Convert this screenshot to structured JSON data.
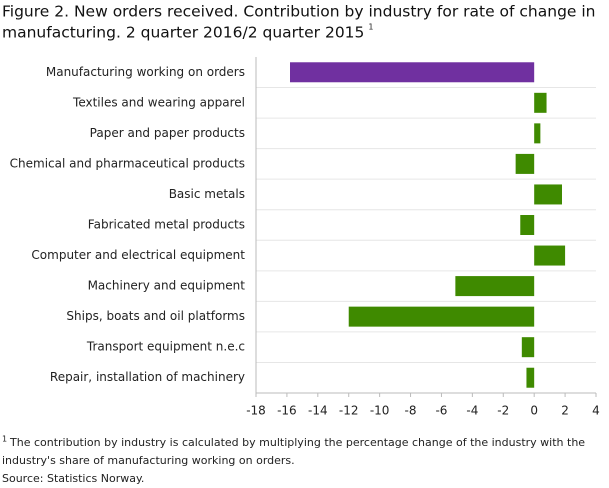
{
  "chart_data": {
    "type": "hbar",
    "title_lines": [
      "Figure 2. New orders received. Contribution by industry for rate of change in",
      "manufacturing. 2 quarter 2016/2 quarter 2015"
    ],
    "title_footnote_mark": "1",
    "categories": [
      "Manufacturing working on orders",
      "Textiles and wearing apparel",
      "Paper and paper products",
      "Chemical and pharmaceutical products",
      "Basic metals",
      "Fabricated metal products",
      "Computer and electrical equipment",
      "Machinery and equipment",
      "Ships, boats and oil platforms",
      "Transport equipment n.e.c",
      "Repair, installation of machinery"
    ],
    "values": [
      -15.8,
      0.8,
      0.4,
      -1.2,
      1.8,
      -0.9,
      2.0,
      -5.1,
      -12.0,
      -0.8,
      -0.5
    ],
    "colors": [
      "#7030a0",
      "#3f8a00",
      "#3f8a00",
      "#3f8a00",
      "#3f8a00",
      "#3f8a00",
      "#3f8a00",
      "#3f8a00",
      "#3f8a00",
      "#3f8a00",
      "#3f8a00"
    ],
    "xlim": [
      -18,
      4
    ],
    "xticks": [
      -18,
      -16,
      -14,
      -12,
      -10,
      -8,
      -6,
      -4,
      -2,
      0,
      2,
      4
    ],
    "footnote_mark": "1",
    "footnote_lines": [
      "The contribution  by industry is calculated by multiplying  the percentage change of the industry with the",
      "industry's share of manufacturing working on orders."
    ],
    "source": "Source: Statistics Norway."
  }
}
